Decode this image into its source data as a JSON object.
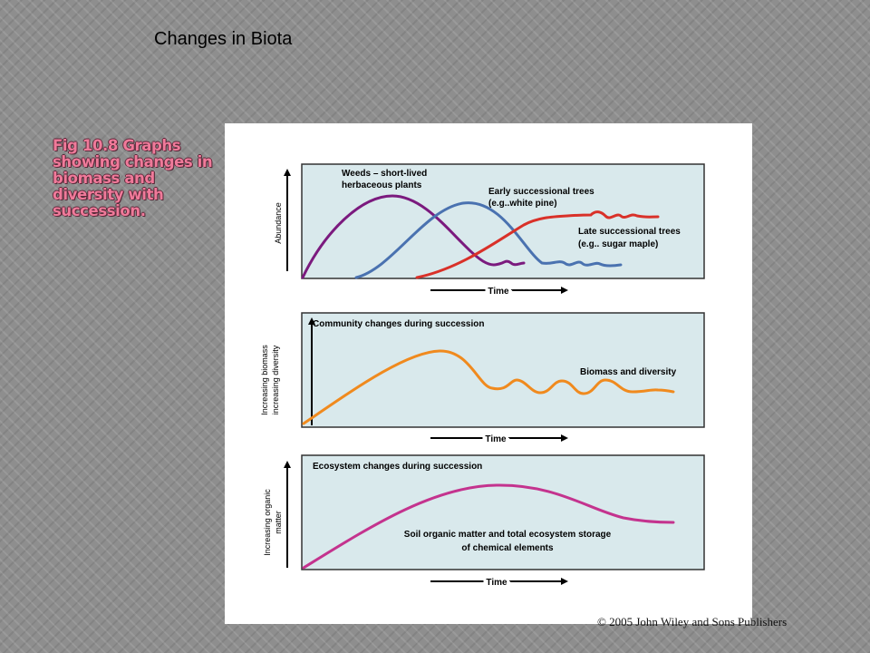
{
  "slide": {
    "title": "Changes in Biota",
    "caption": "Fig 10.8  Graphs showing changes in biomass and diversity with succession.",
    "copyright": "© 2005 John Wiley and Sons Publishers"
  },
  "colors": {
    "panel_fill": "#d9e9ec",
    "weeds": "#7b1a7e",
    "early": "#4a72b0",
    "late": "#d93129",
    "biomass": "#f08a1e",
    "organic": "#c4338e"
  },
  "figure": {
    "panel1": {
      "ylabel": "Abundance",
      "xlabel": "Time",
      "weeds_label_1": "Weeds – short-lived",
      "weeds_label_2": "herbaceous plants",
      "early_label_1": "Early successional trees",
      "early_label_2": "(e.g..white pine)",
      "late_label_1": "Late successional trees",
      "late_label_2": "(e.g.. sugar maple)"
    },
    "panel2": {
      "ylabel_1": "Increasing biomass",
      "ylabel_2": "increasing diversity",
      "xlabel": "Time",
      "title": "Community changes during succession",
      "curve_label": "Biomass and diversity"
    },
    "panel3": {
      "ylabel_1": "Increasing organic",
      "ylabel_2": "matter",
      "xlabel": "Time",
      "title": "Ecosystem changes during succession",
      "curve_label_1": "Soil organic matter and total ecosystem storage",
      "curve_label_2": "of chemical elements"
    }
  }
}
